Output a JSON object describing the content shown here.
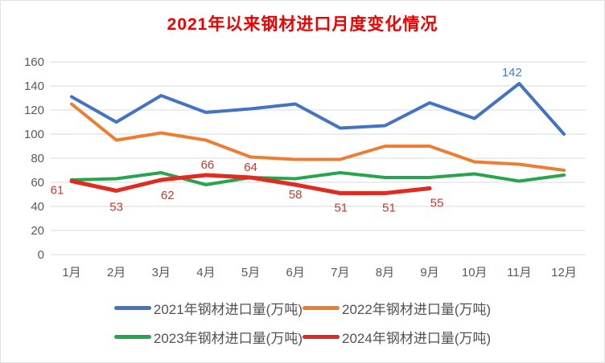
{
  "title": "2021年以来钢材进口月度变化情况",
  "title_color": "#f20000",
  "axis_text_color": "#595959",
  "gridline_color": "#d9d9d9",
  "chart_data": {
    "type": "line",
    "title": "2021年以来钢材进口月度变化情况",
    "xlabel": "",
    "ylabel": "",
    "ylim": [
      0,
      160
    ],
    "yticks": [
      160,
      140,
      120,
      100,
      80,
      60,
      40,
      20,
      0
    ],
    "grid": true,
    "legend_position": "bottom",
    "categories": [
      "1月",
      "2月",
      "3月",
      "4月",
      "5月",
      "6月",
      "7月",
      "8月",
      "9月",
      "10月",
      "11月",
      "12月"
    ],
    "series": [
      {
        "name": "2021年钢材进口量(万吨)",
        "color": "#4472c4",
        "stroke_width": 4,
        "values": [
          131,
          110,
          132,
          118,
          121,
          125,
          105,
          107,
          126,
          113,
          142,
          100
        ],
        "labels": [
          {
            "index": 10,
            "text": "142",
            "color": "#4080be",
            "dx": -9,
            "dy": -9
          }
        ]
      },
      {
        "name": "2022年钢材进口量(万吨)",
        "color": "#ed7d31",
        "stroke_width": 4,
        "values": [
          125,
          95,
          101,
          95,
          81,
          79,
          79,
          90,
          90,
          77,
          75,
          70
        ],
        "labels": []
      },
      {
        "name": "2023年钢材进口量(万吨)",
        "color": "#27a44e",
        "stroke_width": 4,
        "values": [
          62,
          63,
          68,
          58,
          64,
          63,
          68,
          64,
          64,
          67,
          61,
          66
        ],
        "labels": []
      },
      {
        "name": "2024年钢材进口量(万吨)",
        "color": "#e02b20",
        "stroke_width": 5,
        "values": [
          61,
          53,
          62,
          66,
          64,
          58,
          51,
          51,
          55
        ],
        "labels": [
          {
            "index": 0,
            "text": "61",
            "color": "#c43a2f",
            "dx": -18,
            "dy": 16
          },
          {
            "index": 1,
            "text": "53",
            "color": "#c43a2f",
            "dx": 0,
            "dy": 25
          },
          {
            "index": 2,
            "text": "62",
            "color": "#c43a2f",
            "dx": 8,
            "dy": 24
          },
          {
            "index": 3,
            "text": "66",
            "color": "#c43a2f",
            "dx": 2,
            "dy": -8
          },
          {
            "index": 4,
            "text": "64",
            "color": "#c43a2f",
            "dx": 0,
            "dy": -8
          },
          {
            "index": 5,
            "text": "58",
            "color": "#c43a2f",
            "dx": 0,
            "dy": 17
          },
          {
            "index": 6,
            "text": "51",
            "color": "#c43a2f",
            "dx": 1,
            "dy": 23
          },
          {
            "index": 7,
            "text": "51",
            "color": "#c43a2f",
            "dx": 5,
            "dy": 23
          },
          {
            "index": 8,
            "text": "55",
            "color": "#c43a2f",
            "dx": 9,
            "dy": 23
          }
        ]
      }
    ]
  }
}
